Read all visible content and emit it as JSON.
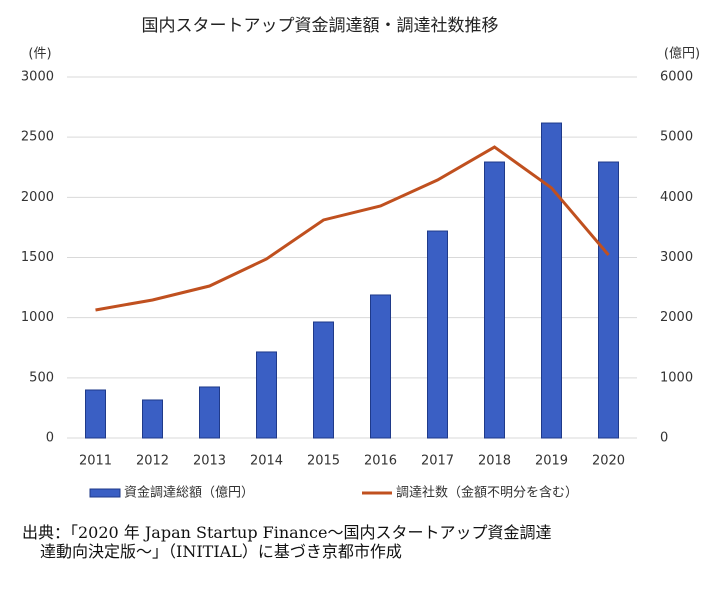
{
  "chart_data": {
    "type": "bar_line",
    "title": "国内スタートアップ資金調達額・調達社数推移",
    "y_label": "(件)",
    "y2_label": "(億円)",
    "categories": [
      "2011",
      "2012",
      "2013",
      "2014",
      "2015",
      "2016",
      "2017",
      "2018",
      "2019",
      "2020"
    ],
    "series": [
      {
        "name": "資金調達総額（億円）",
        "type": "bar",
        "axis": "y2",
        "color": "#3a5fc4",
        "values": [
          798,
          632,
          848,
          1430,
          1928,
          2377,
          3440,
          4587,
          5235,
          4587
        ]
      },
      {
        "name": "調達社数（金額不明分を含む）",
        "type": "line",
        "axis": "y",
        "color": "#c0501f",
        "values": [
          1064,
          1147,
          1263,
          1488,
          1812,
          1928,
          2144,
          2418,
          2078,
          1521
        ]
      }
    ],
    "ylim": [
      0,
      3000
    ],
    "yticks": [
      0,
      500,
      1000,
      1500,
      2000,
      2500,
      3000
    ],
    "y2lim": [
      0,
      6000
    ],
    "y2ticks": [
      0,
      1000,
      2000,
      3000,
      4000,
      5000,
      6000
    ],
    "grid": true
  },
  "source": [
    "出典：「2020 年 Japan Startup Finance～国内スタートアップ資金調達",
    "達動向決定版～」（INITIAL）に基づき京都市作成"
  ]
}
